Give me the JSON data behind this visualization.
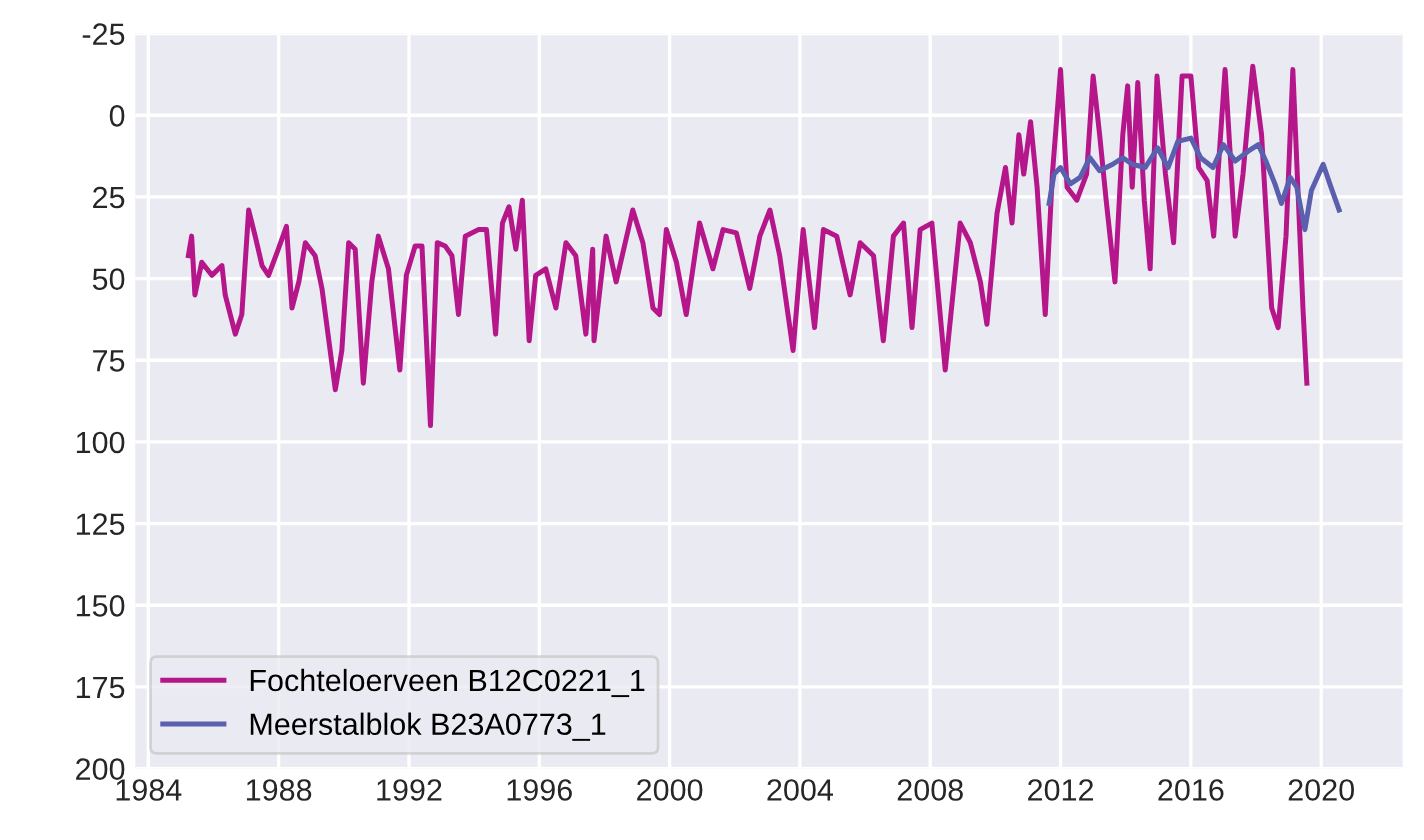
{
  "chart_data": {
    "type": "line",
    "xlim": [
      1983.6,
      2022.5
    ],
    "ylim": [
      200,
      -25
    ],
    "xticks": [
      1984,
      1988,
      1992,
      1996,
      2000,
      2004,
      2008,
      2012,
      2016,
      2020
    ],
    "yticks": [
      -25,
      0,
      25,
      50,
      75,
      100,
      125,
      150,
      175,
      200
    ],
    "grid": true,
    "legend": "bottom left",
    "line_style": "solid",
    "marker": "none",
    "series": [
      {
        "name": "Fochteloerveen B12C0221_1",
        "color": "#b5178b",
        "x": [
          1985.23,
          1985.33,
          1985.43,
          1985.64,
          1985.95,
          1986.26,
          1986.36,
          1986.67,
          1986.87,
          1987.08,
          1987.28,
          1987.49,
          1987.69,
          1987.99,
          1988.24,
          1988.41,
          1988.62,
          1988.82,
          1989.12,
          1989.33,
          1989.74,
          1989.94,
          1990.15,
          1990.35,
          1990.6,
          1990.86,
          1991.06,
          1991.37,
          1991.72,
          1991.92,
          1992.19,
          1992.4,
          1992.66,
          1992.87,
          1993.11,
          1993.32,
          1993.52,
          1993.73,
          1994.14,
          1994.38,
          1994.66,
          1994.87,
          1995.07,
          1995.28,
          1995.48,
          1995.69,
          1995.89,
          1996.2,
          1996.51,
          1996.82,
          1997.12,
          1997.43,
          1997.64,
          1997.68,
          1998.05,
          1998.36,
          1998.87,
          1999.18,
          1999.49,
          1999.69,
          1999.9,
          2000.21,
          2000.51,
          2000.92,
          2001.33,
          2001.64,
          2002.05,
          2002.46,
          2002.77,
          2003.08,
          2003.38,
          2003.79,
          2004.1,
          2004.45,
          2004.72,
          2005.13,
          2005.54,
          2005.85,
          2006.26,
          2006.56,
          2006.87,
          2007.18,
          2007.44,
          2007.69,
          2008.05,
          2008.46,
          2008.92,
          2009.23,
          2009.54,
          2009.74,
          2010.05,
          2010.31,
          2010.51,
          2010.72,
          2010.87,
          2011.08,
          2011.28,
          2011.53,
          2011.75,
          2012.0,
          2012.2,
          2012.5,
          2012.8,
          2013.0,
          2013.2,
          2013.4,
          2013.67,
          2013.91,
          2014.06,
          2014.2,
          2014.37,
          2014.57,
          2014.75,
          2014.96,
          2015.22,
          2015.47,
          2015.73,
          2016.0,
          2016.24,
          2016.5,
          2016.7,
          2017.05,
          2017.36,
          2017.6,
          2017.9,
          2018.17,
          2018.48,
          2018.68,
          2018.92,
          2019.13,
          2019.3,
          2019.44,
          2019.56
        ],
        "values": [
          43,
          37,
          55,
          45,
          49,
          46,
          55,
          67,
          61,
          29,
          37,
          46,
          49,
          41,
          34,
          59,
          51,
          39,
          43,
          53,
          84,
          72,
          39,
          41,
          82,
          51,
          37,
          47,
          78,
          49,
          40,
          40,
          95,
          39,
          40,
          43,
          61,
          37,
          35,
          35,
          67,
          33,
          28,
          41,
          26,
          69,
          49,
          47,
          59,
          39,
          43,
          67,
          41,
          69,
          37,
          51,
          29,
          39,
          59,
          61,
          35,
          45,
          61,
          33,
          47,
          35,
          36,
          53,
          37,
          29,
          43,
          72,
          35,
          65,
          35,
          37,
          55,
          39,
          43,
          69,
          37,
          33,
          65,
          35,
          33,
          78,
          33,
          39,
          51,
          64,
          30,
          16,
          33,
          6,
          18,
          2,
          22,
          61,
          18,
          -14,
          22,
          26,
          18,
          -12,
          6,
          26,
          51,
          6,
          -9,
          22,
          -10,
          26,
          47,
          -12,
          18,
          39,
          -12,
          -12,
          16,
          20,
          37,
          -14,
          37,
          18,
          -15,
          6,
          59,
          65,
          37,
          -14,
          26,
          59,
          82
        ]
      },
      {
        "name": "Meerstalblok B23A0773_1",
        "color": "#5a5fae",
        "x": [
          2011.65,
          2011.8,
          2012.0,
          2012.3,
          2012.6,
          2012.9,
          2013.2,
          2013.6,
          2013.91,
          2014.2,
          2014.6,
          2014.98,
          2015.3,
          2015.6,
          2016.0,
          2016.3,
          2016.68,
          2017.0,
          2017.36,
          2017.76,
          2018.07,
          2018.3,
          2018.58,
          2018.78,
          2019.05,
          2019.25,
          2019.5,
          2019.7,
          2020.06,
          2020.3,
          2020.55
        ],
        "values": [
          27,
          18,
          16,
          21,
          19,
          13,
          17,
          15,
          13,
          15,
          16,
          10,
          16,
          8,
          7,
          13,
          16,
          9,
          14,
          11,
          9,
          14,
          21,
          27,
          19,
          22,
          35,
          23,
          15,
          22,
          29
        ]
      }
    ]
  }
}
